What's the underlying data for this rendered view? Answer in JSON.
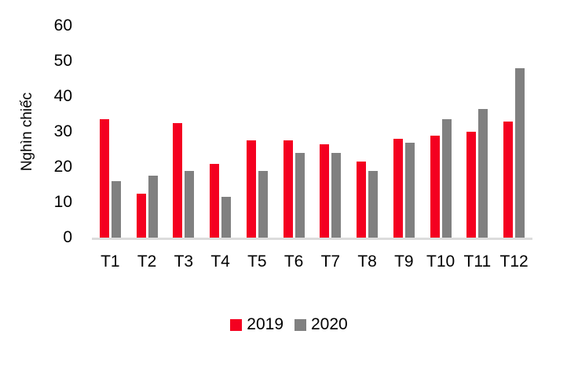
{
  "chart_data": {
    "type": "bar",
    "title": "",
    "xlabel": "",
    "ylabel": "Nghìn chiếc",
    "ylim": [
      0,
      60
    ],
    "yticks": [
      0,
      10,
      20,
      30,
      40,
      50,
      60
    ],
    "grid": false,
    "legend_position": "bottom",
    "categories": [
      "T1",
      "T2",
      "T3",
      "T4",
      "T5",
      "T6",
      "T7",
      "T8",
      "T9",
      "T10",
      "T11",
      "T12"
    ],
    "series": [
      {
        "name": "2019",
        "color": "#F40020",
        "values": [
          33.5,
          12.5,
          32.5,
          21,
          27.5,
          27.5,
          26.5,
          21.5,
          28,
          29,
          30,
          33
        ]
      },
      {
        "name": "2020",
        "color": "#808080",
        "values": [
          16,
          17.5,
          19,
          11.5,
          19,
          24,
          24,
          19,
          27,
          33.5,
          36.5,
          48
        ]
      }
    ]
  },
  "colors": {
    "background": "#FFFFFF",
    "axis_line": "#DCDCDC",
    "text": "#000000"
  }
}
